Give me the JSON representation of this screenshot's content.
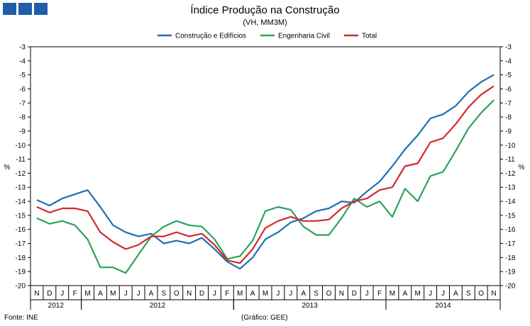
{
  "chart_data": {
    "type": "line",
    "title": "Índice Produção na Construção",
    "subtitle": "(VH, MM3M)",
    "ylabel_left": "%",
    "ylabel_right": "%",
    "ylim": [
      -20,
      -3
    ],
    "yticks": [
      -3,
      -4,
      -5,
      -6,
      -7,
      -8,
      -9,
      -10,
      -11,
      -12,
      -13,
      -14,
      -15,
      -16,
      -17,
      -18,
      -19,
      -20
    ],
    "months": [
      "N",
      "D",
      "J",
      "F",
      "M",
      "A",
      "M",
      "J",
      "J",
      "A",
      "S",
      "O",
      "N",
      "D",
      "J",
      "F",
      "M",
      "A",
      "M",
      "J",
      "J",
      "A",
      "S",
      "O",
      "N",
      "D",
      "J",
      "F",
      "M",
      "A",
      "M",
      "J",
      "J",
      "A",
      "S",
      "O",
      "N"
    ],
    "years": [
      {
        "label": "2012",
        "start": 0,
        "end": 4
      },
      {
        "label": "2012",
        "start": 4,
        "end": 16
      },
      {
        "label": "2013",
        "start": 16,
        "end": 28
      },
      {
        "label": "2014",
        "start": 28,
        "end": 37
      }
    ],
    "series": [
      {
        "name": "Construção e Edifícios",
        "color": "#1f6fb5",
        "values": [
          -13.9,
          -14.3,
          -13.8,
          -13.5,
          -13.2,
          -14.4,
          -15.7,
          -16.2,
          -16.5,
          -16.3,
          -17.0,
          -16.8,
          -17.0,
          -16.6,
          -17.4,
          -18.3,
          -18.8,
          -18.0,
          -16.7,
          -16.2,
          -15.5,
          -15.2,
          -14.7,
          -14.5,
          -14.0,
          -14.1,
          -13.3,
          -12.6,
          -11.5,
          -10.3,
          -9.3,
          -8.1,
          -7.8,
          -7.2,
          -6.2,
          -5.5,
          -5.0
        ]
      },
      {
        "name": "Engenharia Civil",
        "color": "#2ca35a",
        "values": [
          -15.2,
          -15.6,
          -15.4,
          -15.7,
          -16.7,
          -18.7,
          -18.7,
          -19.1,
          -17.8,
          -16.5,
          -15.8,
          -15.4,
          -15.7,
          -15.8,
          -16.7,
          -18.1,
          -17.9,
          -16.8,
          -14.7,
          -14.4,
          -14.6,
          -15.8,
          -16.4,
          -16.4,
          -15.2,
          -13.8,
          -14.4,
          -14.0,
          -15.1,
          -13.1,
          -14.0,
          -12.2,
          -11.9,
          -10.4,
          -8.8,
          -7.7,
          -6.8
        ]
      },
      {
        "name": "Total",
        "color": "#d22b2b",
        "values": [
          -14.4,
          -14.8,
          -14.5,
          -14.5,
          -14.7,
          -16.2,
          -16.9,
          -17.4,
          -17.1,
          -16.5,
          -16.5,
          -16.2,
          -16.5,
          -16.3,
          -17.1,
          -18.2,
          -18.4,
          -17.4,
          -15.9,
          -15.4,
          -15.1,
          -15.4,
          -15.4,
          -15.3,
          -14.5,
          -14.0,
          -13.8,
          -13.2,
          -13.0,
          -11.5,
          -11.3,
          -9.8,
          -9.5,
          -8.5,
          -7.3,
          -6.4,
          -5.8
        ]
      }
    ]
  },
  "footer": {
    "source": "Fonte: INE",
    "credit": "(Gráfico: GEE)"
  }
}
